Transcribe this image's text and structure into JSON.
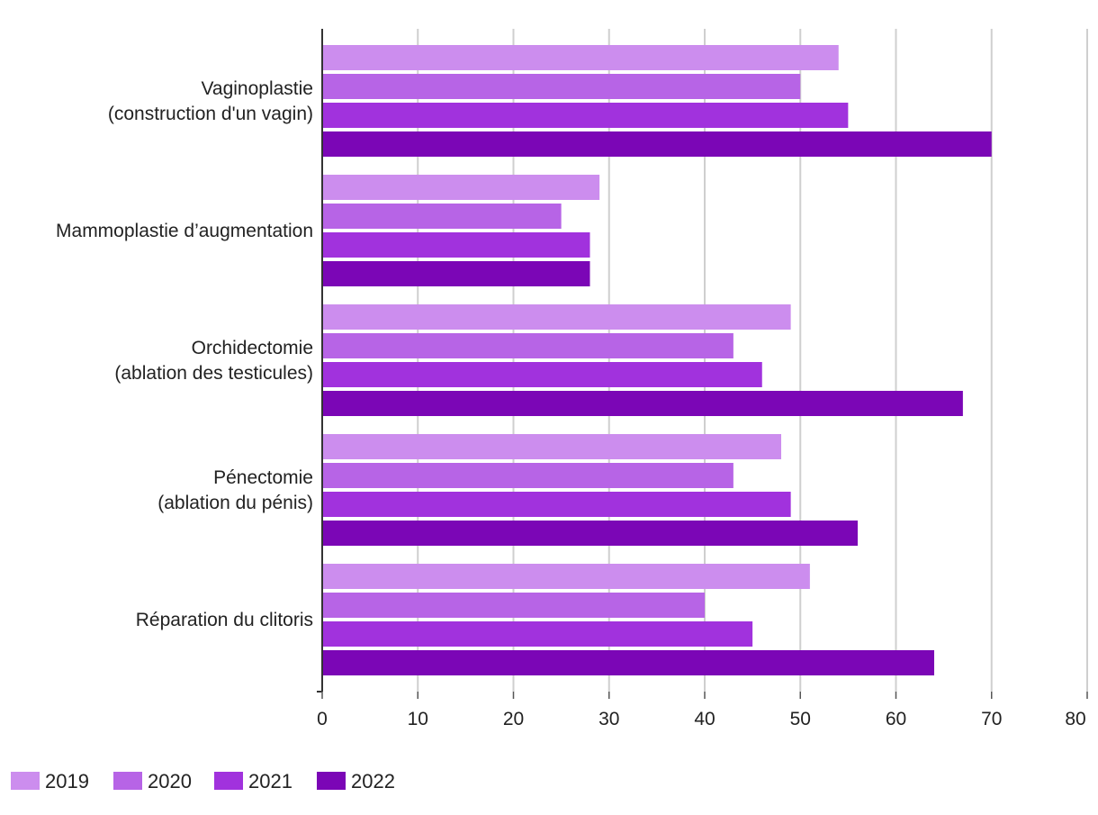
{
  "chart_data": {
    "type": "bar",
    "orientation": "horizontal",
    "categories": [
      [
        "Vaginoplastie",
        "(construction d'un vagin)"
      ],
      [
        "Mammoplastie d’augmentation"
      ],
      [
        "Orchidectomie",
        "(ablation des testicules)"
      ],
      [
        "Pénectomie",
        "(ablation du pénis)"
      ],
      [
        "Réparation du clitoris"
      ]
    ],
    "series": [
      {
        "name": "2019",
        "color": "#cc8dee",
        "values": [
          54,
          29,
          49,
          48,
          51
        ]
      },
      {
        "name": "2020",
        "color": "#b764e6",
        "values": [
          50,
          25,
          43,
          43,
          40
        ]
      },
      {
        "name": "2021",
        "color": "#a132dd",
        "values": [
          55,
          28,
          46,
          49,
          45
        ]
      },
      {
        "name": "2022",
        "color": "#7b06b6",
        "values": [
          70,
          28,
          67,
          56,
          64
        ]
      }
    ],
    "xlim": [
      0,
      80
    ],
    "xticks": [
      "0",
      "10",
      "20",
      "30",
      "40",
      "50",
      "60",
      "70",
      "80"
    ],
    "grid": true,
    "legend_position": "bottom-left",
    "title": "",
    "xlabel": "",
    "ylabel": ""
  }
}
